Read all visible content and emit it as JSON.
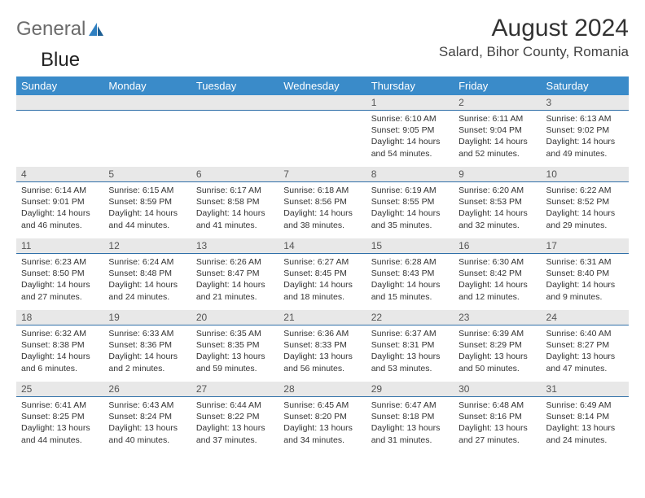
{
  "logo": {
    "text1": "General",
    "text2": "Blue"
  },
  "title": "August 2024",
  "location": "Salard, Bihor County, Romania",
  "colors": {
    "header_bg": "#3a8bc9",
    "header_text": "#ffffff",
    "row_stripe": "#e8e8e8",
    "row_border": "#2f6fa8",
    "logo_gray": "#6b6b6b",
    "logo_blue": "#2f7fc1"
  },
  "day_headers": [
    "Sunday",
    "Monday",
    "Tuesday",
    "Wednesday",
    "Thursday",
    "Friday",
    "Saturday"
  ],
  "weeks": [
    [
      null,
      null,
      null,
      null,
      {
        "n": "1",
        "sr": "6:10 AM",
        "ss": "9:05 PM",
        "dl": "14 hours and 54 minutes."
      },
      {
        "n": "2",
        "sr": "6:11 AM",
        "ss": "9:04 PM",
        "dl": "14 hours and 52 minutes."
      },
      {
        "n": "3",
        "sr": "6:13 AM",
        "ss": "9:02 PM",
        "dl": "14 hours and 49 minutes."
      }
    ],
    [
      {
        "n": "4",
        "sr": "6:14 AM",
        "ss": "9:01 PM",
        "dl": "14 hours and 46 minutes."
      },
      {
        "n": "5",
        "sr": "6:15 AM",
        "ss": "8:59 PM",
        "dl": "14 hours and 44 minutes."
      },
      {
        "n": "6",
        "sr": "6:17 AM",
        "ss": "8:58 PM",
        "dl": "14 hours and 41 minutes."
      },
      {
        "n": "7",
        "sr": "6:18 AM",
        "ss": "8:56 PM",
        "dl": "14 hours and 38 minutes."
      },
      {
        "n": "8",
        "sr": "6:19 AM",
        "ss": "8:55 PM",
        "dl": "14 hours and 35 minutes."
      },
      {
        "n": "9",
        "sr": "6:20 AM",
        "ss": "8:53 PM",
        "dl": "14 hours and 32 minutes."
      },
      {
        "n": "10",
        "sr": "6:22 AM",
        "ss": "8:52 PM",
        "dl": "14 hours and 29 minutes."
      }
    ],
    [
      {
        "n": "11",
        "sr": "6:23 AM",
        "ss": "8:50 PM",
        "dl": "14 hours and 27 minutes."
      },
      {
        "n": "12",
        "sr": "6:24 AM",
        "ss": "8:48 PM",
        "dl": "14 hours and 24 minutes."
      },
      {
        "n": "13",
        "sr": "6:26 AM",
        "ss": "8:47 PM",
        "dl": "14 hours and 21 minutes."
      },
      {
        "n": "14",
        "sr": "6:27 AM",
        "ss": "8:45 PM",
        "dl": "14 hours and 18 minutes."
      },
      {
        "n": "15",
        "sr": "6:28 AM",
        "ss": "8:43 PM",
        "dl": "14 hours and 15 minutes."
      },
      {
        "n": "16",
        "sr": "6:30 AM",
        "ss": "8:42 PM",
        "dl": "14 hours and 12 minutes."
      },
      {
        "n": "17",
        "sr": "6:31 AM",
        "ss": "8:40 PM",
        "dl": "14 hours and 9 minutes."
      }
    ],
    [
      {
        "n": "18",
        "sr": "6:32 AM",
        "ss": "8:38 PM",
        "dl": "14 hours and 6 minutes."
      },
      {
        "n": "19",
        "sr": "6:33 AM",
        "ss": "8:36 PM",
        "dl": "14 hours and 2 minutes."
      },
      {
        "n": "20",
        "sr": "6:35 AM",
        "ss": "8:35 PM",
        "dl": "13 hours and 59 minutes."
      },
      {
        "n": "21",
        "sr": "6:36 AM",
        "ss": "8:33 PM",
        "dl": "13 hours and 56 minutes."
      },
      {
        "n": "22",
        "sr": "6:37 AM",
        "ss": "8:31 PM",
        "dl": "13 hours and 53 minutes."
      },
      {
        "n": "23",
        "sr": "6:39 AM",
        "ss": "8:29 PM",
        "dl": "13 hours and 50 minutes."
      },
      {
        "n": "24",
        "sr": "6:40 AM",
        "ss": "8:27 PM",
        "dl": "13 hours and 47 minutes."
      }
    ],
    [
      {
        "n": "25",
        "sr": "6:41 AM",
        "ss": "8:25 PM",
        "dl": "13 hours and 44 minutes."
      },
      {
        "n": "26",
        "sr": "6:43 AM",
        "ss": "8:24 PM",
        "dl": "13 hours and 40 minutes."
      },
      {
        "n": "27",
        "sr": "6:44 AM",
        "ss": "8:22 PM",
        "dl": "13 hours and 37 minutes."
      },
      {
        "n": "28",
        "sr": "6:45 AM",
        "ss": "8:20 PM",
        "dl": "13 hours and 34 minutes."
      },
      {
        "n": "29",
        "sr": "6:47 AM",
        "ss": "8:18 PM",
        "dl": "13 hours and 31 minutes."
      },
      {
        "n": "30",
        "sr": "6:48 AM",
        "ss": "8:16 PM",
        "dl": "13 hours and 27 minutes."
      },
      {
        "n": "31",
        "sr": "6:49 AM",
        "ss": "8:14 PM",
        "dl": "13 hours and 24 minutes."
      }
    ]
  ],
  "labels": {
    "sunrise": "Sunrise: ",
    "sunset": "Sunset: ",
    "daylight": "Daylight: "
  }
}
